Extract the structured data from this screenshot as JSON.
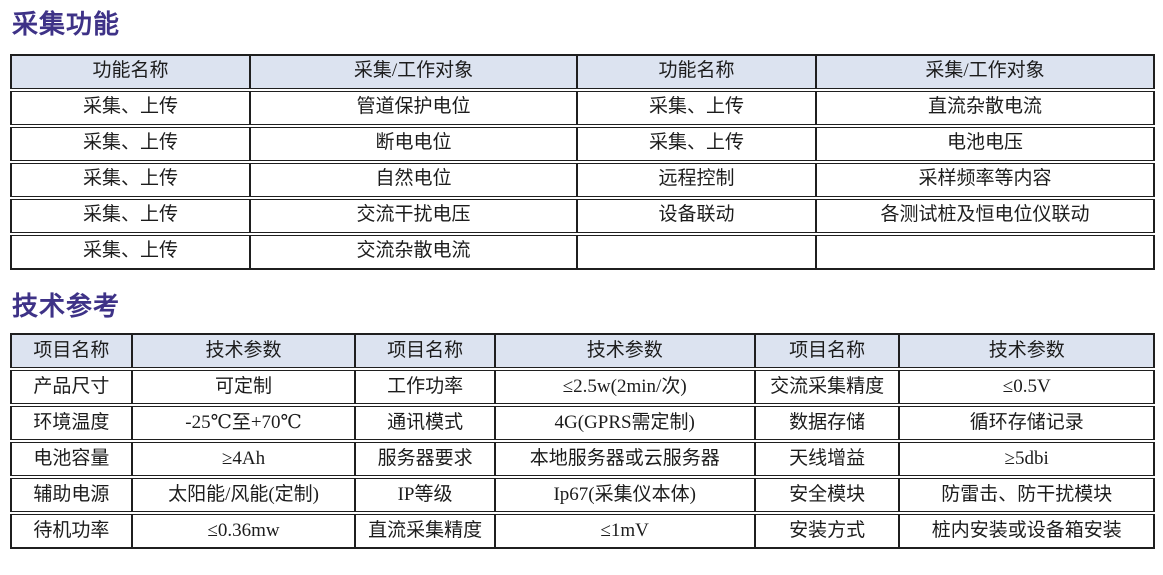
{
  "colors": {
    "title": "#3e3287",
    "header_bg": "#dce3f0",
    "border": "#1f1f1f",
    "text": "#1c1c1c"
  },
  "section1": {
    "title": "采集功能",
    "table": {
      "headers": [
        "功能名称",
        "采集/工作对象",
        "功能名称",
        "采集/工作对象"
      ],
      "rows": [
        [
          "采集、上传",
          "管道保护电位",
          "采集、上传",
          "直流杂散电流"
        ],
        [
          "采集、上传",
          "断电电位",
          "采集、上传",
          "电池电压"
        ],
        [
          "采集、上传",
          "自然电位",
          "远程控制",
          "采样频率等内容"
        ],
        [
          "采集、上传",
          "交流干扰电压",
          "设备联动",
          "各测试桩及恒电位仪联动"
        ],
        [
          "采集、上传",
          "交流杂散电流",
          "",
          ""
        ]
      ]
    }
  },
  "section2": {
    "title": "技术参考",
    "table": {
      "headers": [
        "项目名称",
        "技术参数",
        "项目名称",
        "技术参数",
        "项目名称",
        "技术参数"
      ],
      "rows": [
        [
          "产品尺寸",
          "可定制",
          "工作功率",
          "≤2.5w(2min/次)",
          "交流采集精度",
          "≤0.5V"
        ],
        [
          "环境温度",
          "-25℃至+70℃",
          "通讯模式",
          "4G(GPRS需定制)",
          "数据存储",
          "循环存储记录"
        ],
        [
          "电池容量",
          "≥4Ah",
          "服务器要求",
          "本地服务器或云服务器",
          "天线增益",
          "≥5dbi"
        ],
        [
          "辅助电源",
          "太阳能/风能(定制)",
          "IP等级",
          "Ip67(采集仪本体)",
          "安全模块",
          "防雷击、防干扰模块"
        ],
        [
          "待机功率",
          "≤0.36mw",
          "直流采集精度",
          "≤1mV",
          "安装方式",
          "桩内安装或设备箱安装"
        ]
      ]
    }
  }
}
